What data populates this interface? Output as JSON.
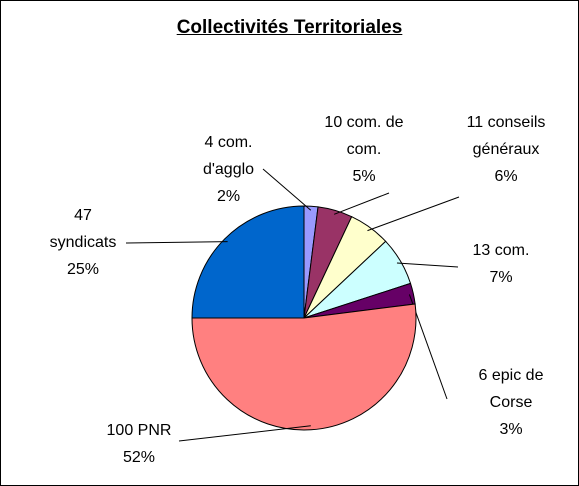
{
  "chart_data": {
    "type": "pie",
    "title": "Collectivités Territoriales",
    "categories": [
      "4 com. d'agglo",
      "10 com. de com.",
      "11 conseils généraux",
      "13 com.",
      "6 epic de Corse",
      "100 PNR",
      "47 syndicats"
    ],
    "values": [
      2,
      5,
      6,
      7,
      3,
      52,
      25
    ],
    "value_labels": [
      "2%",
      "5%",
      "6%",
      "7%",
      "3%",
      "52%",
      "25%"
    ],
    "colors": [
      "#9999ff",
      "#993366",
      "#ffffcc",
      "#ccffff",
      "#660066",
      "#ff8080",
      "#0066cc"
    ]
  }
}
